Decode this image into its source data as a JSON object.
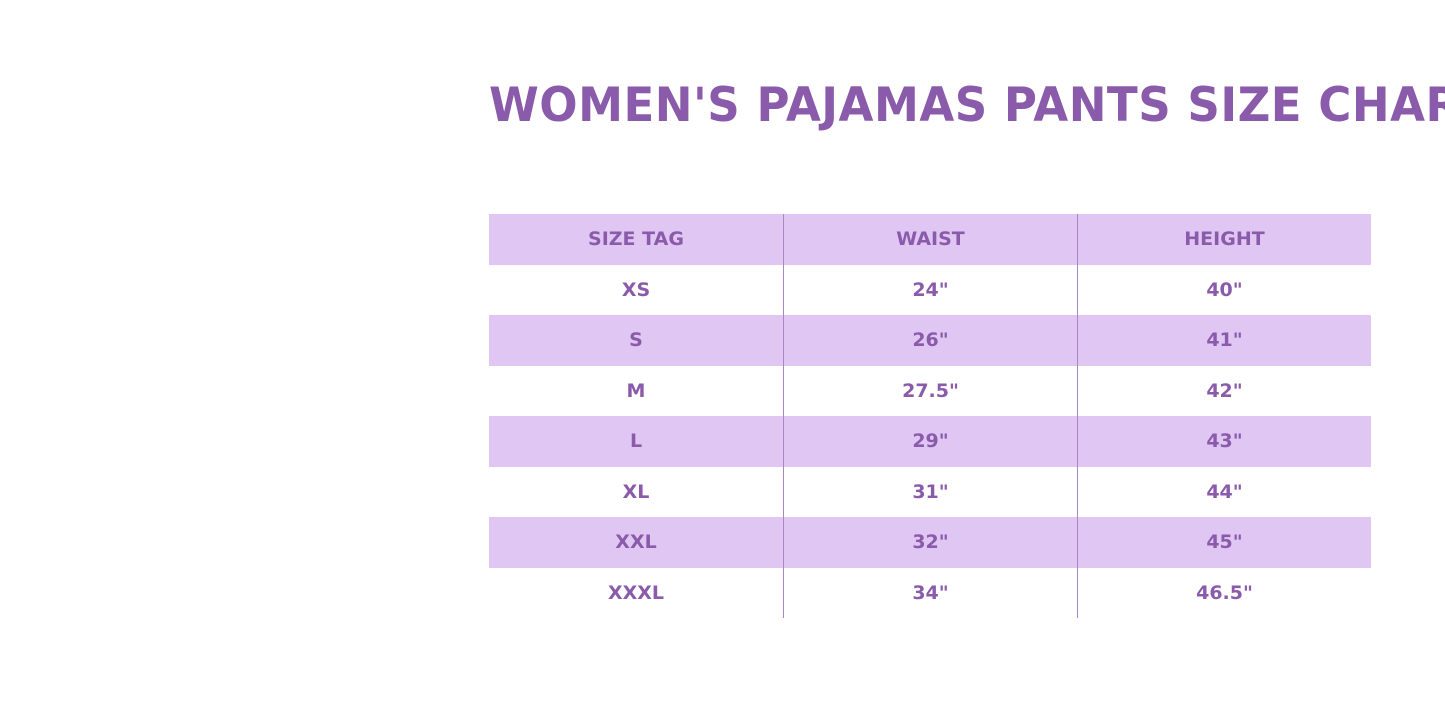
{
  "title": "WOMEN'S PAJAMAS PANTS SIZE CHART",
  "colors": {
    "accent": "#8a5aab",
    "band": "#e0c6f3"
  },
  "table": {
    "headers": [
      "SIZE TAG",
      "WAIST",
      "HEIGHT"
    ],
    "rows": [
      [
        "XS",
        "24\"",
        "40\""
      ],
      [
        "S",
        "26\"",
        "41\""
      ],
      [
        "M",
        "27.5\"",
        "42\""
      ],
      [
        "L",
        "29\"",
        "43\""
      ],
      [
        "XL",
        "31\"",
        "44\""
      ],
      [
        "XXL",
        "32\"",
        "45\""
      ],
      [
        "XXXL",
        "34\"",
        "46.5\""
      ]
    ]
  }
}
